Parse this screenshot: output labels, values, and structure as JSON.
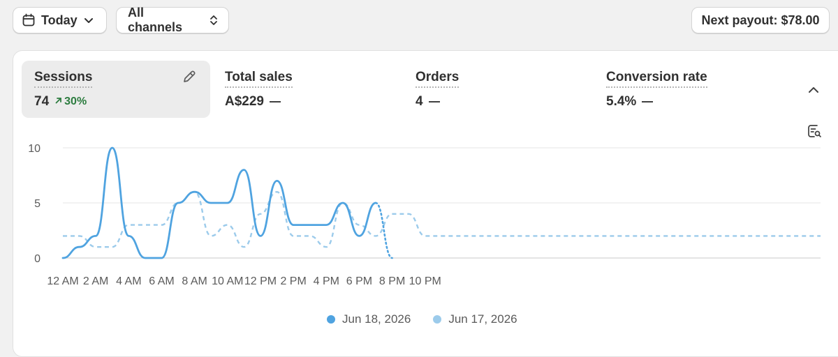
{
  "toolbar": {
    "date_label": "Today",
    "channels_label": "All channels",
    "payout_label": "Next payout: $78.00"
  },
  "metrics": [
    {
      "label": "Sessions",
      "value": "74",
      "change": "30%",
      "active": true
    },
    {
      "label": "Total sales",
      "value": "A$229",
      "change": null
    },
    {
      "label": "Orders",
      "value": "4",
      "change": null
    },
    {
      "label": "Conversion rate",
      "value": "5.4%",
      "change": null
    }
  ],
  "icons": {
    "date": "calendar-icon",
    "date_chevron": "chevron-down-icon",
    "channels_chevron": "chevron-up-down-icon",
    "edit": "pencil-icon",
    "change_arrow": "arrow-up-right-icon",
    "collapse": "chevron-up-icon",
    "chart_view": "chart-search-icon"
  },
  "colors": {
    "current_series": "#4fa3e0",
    "previous_series": "#9ccbeb",
    "positive_change": "#2c7c3f"
  },
  "chart_data": {
    "type": "line",
    "x_ticks": [
      "12 AM",
      "2 AM",
      "4 AM",
      "6 AM",
      "8 AM",
      "10 AM",
      "12 PM",
      "2 PM",
      "4 PM",
      "6 PM",
      "8 PM",
      "10 PM"
    ],
    "ylim": [
      0,
      10
    ],
    "y_ticks": [
      "0",
      "5",
      "10"
    ],
    "grid": true,
    "legend_position": "bottom",
    "series": [
      {
        "name": "Jun 18, 2026",
        "style": "solid",
        "hours": [
          0,
          1,
          2,
          3,
          4,
          5,
          6,
          7,
          8,
          9,
          10,
          11,
          12,
          13,
          14,
          15,
          16,
          17,
          18,
          19,
          20
        ],
        "values": [
          0,
          1,
          2,
          10,
          2,
          0,
          0,
          5,
          6,
          5,
          5,
          8,
          2,
          7,
          3,
          3,
          3,
          5,
          2,
          5,
          0
        ]
      },
      {
        "name": "Jun 17, 2026",
        "style": "dashed",
        "hours": [
          0,
          1,
          2,
          3,
          4,
          5,
          6,
          7,
          8,
          9,
          10,
          11,
          12,
          13,
          14,
          15,
          16,
          17,
          18,
          19,
          20,
          21,
          22,
          23
        ],
        "values": [
          2,
          2,
          1,
          1,
          3,
          3,
          3,
          5,
          6,
          2,
          3,
          1,
          4,
          6,
          2,
          2,
          1,
          5,
          3,
          2,
          4,
          4,
          2,
          2
        ]
      }
    ]
  }
}
